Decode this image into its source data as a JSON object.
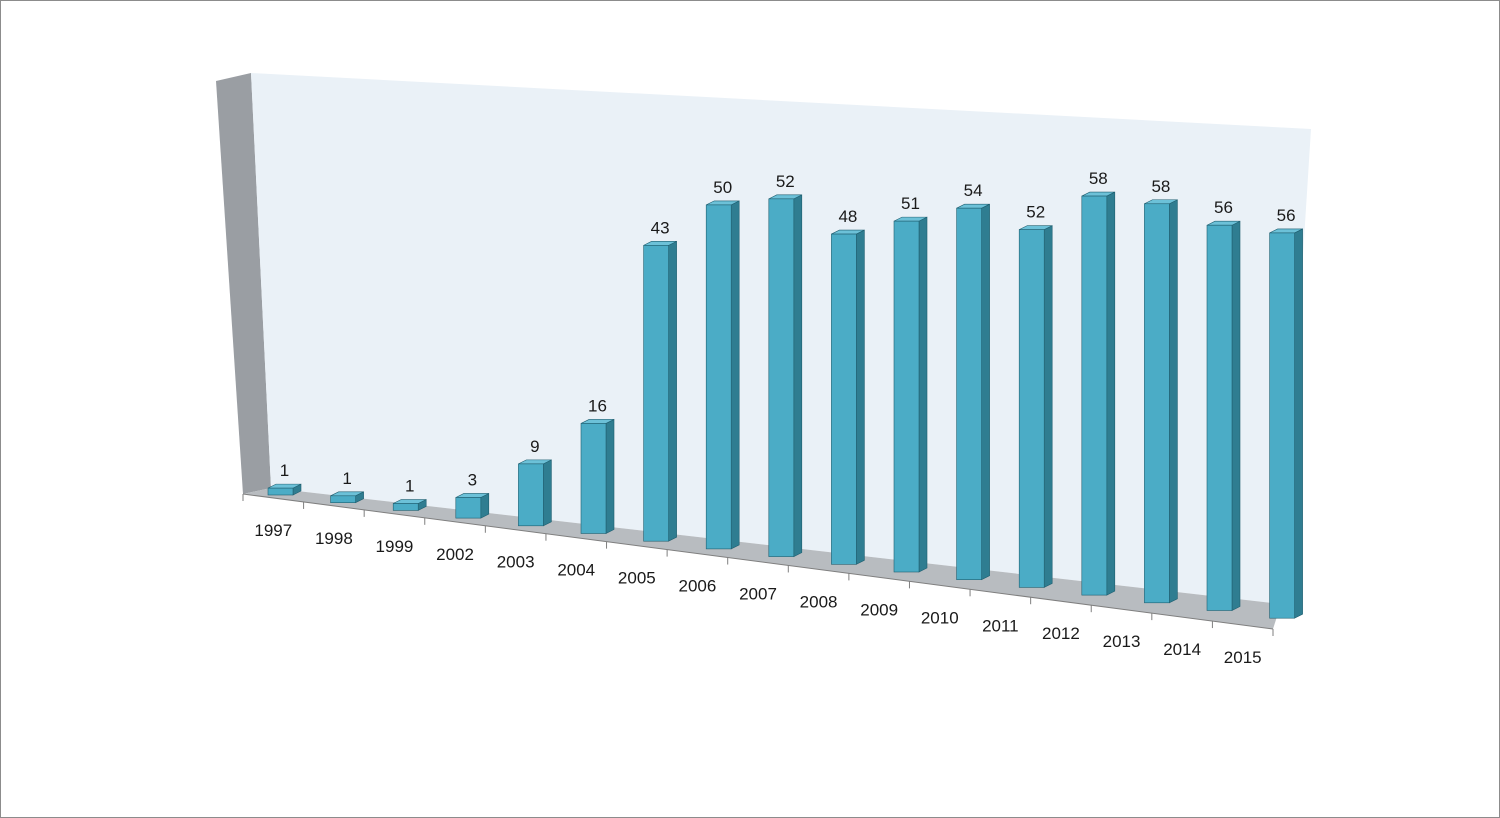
{
  "chart_data": {
    "type": "bar",
    "style": "3d-column",
    "title": "",
    "xlabel": "",
    "ylabel": "",
    "categories": [
      "1997",
      "1998",
      "1999",
      "2002",
      "2003",
      "2004",
      "2005",
      "2006",
      "2007",
      "2008",
      "2009",
      "2010",
      "2011",
      "2012",
      "2013",
      "2014",
      "2015"
    ],
    "values": [
      1,
      1,
      1,
      3,
      9,
      16,
      43,
      50,
      52,
      48,
      51,
      54,
      52,
      58,
      58,
      56,
      56
    ],
    "ylim": [
      0,
      60
    ],
    "grid": false,
    "legend": "none",
    "data_labels": true,
    "colors": {
      "bar_front": "#4bacc6",
      "bar_side": "#2f7d91",
      "bar_top": "#6cc1d8",
      "bar_edge": "#1f5f70",
      "back_wall": "#eaf1f7",
      "side_wall": "#9a9ea3",
      "floor": "#b8bcc0",
      "axis_line": "#7f7f7f"
    }
  }
}
